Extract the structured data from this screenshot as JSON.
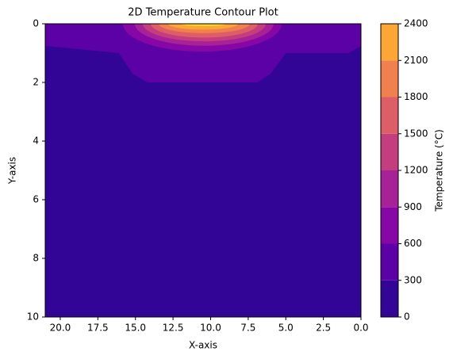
{
  "chart_data": {
    "type": "contour",
    "title": "2D Temperature Contour Plot",
    "xlabel": "X-axis",
    "ylabel": "Y-axis",
    "colorbar_label": "Temperature (°C)",
    "xlim": [
      21,
      0
    ],
    "ylim": [
      0,
      10
    ],
    "xticks": [
      {
        "value": 20,
        "label": "20.0"
      },
      {
        "value": 17.5,
        "label": "17.5"
      },
      {
        "value": 15,
        "label": "15.0"
      },
      {
        "value": 12.5,
        "label": "12.5"
      },
      {
        "value": 10,
        "label": "10.0"
      },
      {
        "value": 7.5,
        "label": "7.5"
      },
      {
        "value": 5,
        "label": "5.0"
      },
      {
        "value": 2.5,
        "label": "2.5"
      },
      {
        "value": 0,
        "label": "0.0"
      }
    ],
    "yticks": [
      0,
      2,
      4,
      6,
      8,
      10
    ],
    "levels": [
      0,
      300,
      600,
      900,
      1200,
      1500,
      1800,
      2100,
      2400
    ],
    "colors": [
      "#330597",
      "#5c01a6",
      "#8606a6",
      "#a72197",
      "#c43e7f",
      "#dd5e66",
      "#f0804e",
      "#fca636",
      "#f9d924"
    ],
    "regions": [
      {
        "points": [
          [
            21,
            0
          ],
          [
            21,
            10
          ],
          [
            0,
            10
          ],
          [
            0,
            0
          ]
        ]
      },
      {
        "points": [
          [
            21,
            0
          ],
          [
            21,
            0.75
          ],
          [
            16.1,
            1.0
          ],
          [
            15.2,
            1.7
          ],
          [
            14.2,
            2.0
          ],
          [
            6.9,
            2.0
          ],
          [
            6.0,
            1.7
          ],
          [
            5.0,
            1.0
          ],
          [
            0.8,
            1.0
          ],
          [
            0,
            0.75
          ],
          [
            0,
            0
          ]
        ]
      },
      {
        "span": [
          15.83,
          5.28
        ],
        "depth": 0.95
      },
      {
        "span": [
          15.04,
          5.81
        ],
        "depth": 0.75
      },
      {
        "span": [
          14.51,
          6.33
        ],
        "depth": 0.6
      },
      {
        "span": [
          13.98,
          6.86
        ],
        "depth": 0.47
      },
      {
        "span": [
          13.46,
          7.39
        ],
        "depth": 0.32
      },
      {
        "span": [
          12.82,
          8.18
        ],
        "depth": 0.2
      },
      {
        "span": [
          11.98,
          8.97
        ],
        "depth": 0.08
      }
    ]
  }
}
